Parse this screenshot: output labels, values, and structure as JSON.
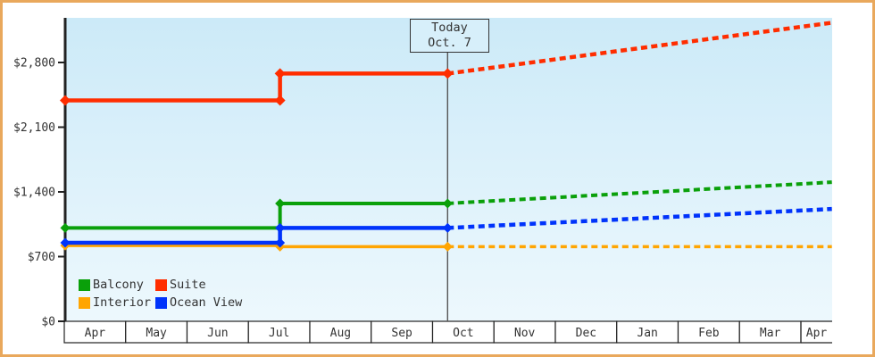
{
  "colors": {
    "frame_border": "#E9A85C",
    "plot_bg_top": "#CCEAF8",
    "plot_bg_bottom": "#EDF8FD",
    "axis": "#222222",
    "text": "#333333",
    "cell_bg": "#FFFFFF",
    "today_line": "#555555",
    "today_box_bg": "#D7EFFA",
    "today_box_border": "#333333"
  },
  "chart_data": {
    "type": "line",
    "x_axis": {
      "unit": "month",
      "categories": [
        "Apr",
        "May",
        "Jun",
        "Jul",
        "Aug",
        "Sep",
        "Oct",
        "Nov",
        "Dec",
        "Jan",
        "Feb",
        "Mar",
        "Apr"
      ]
    },
    "y_axis": {
      "ticks": [
        {
          "label": "$2,800",
          "value": 2800
        },
        {
          "label": "$2,100",
          "value": 2100
        },
        {
          "label": "$1,400",
          "value": 1400
        },
        {
          "label": "$700",
          "value": 700
        },
        {
          "label": "$0",
          "value": 0
        }
      ],
      "range": [
        0,
        3280
      ],
      "grid": false
    },
    "today": {
      "line1": "Today",
      "line2": "Oct. 7",
      "month_offset": 6.23
    },
    "series": [
      {
        "name": "Balcony",
        "color": "#0AA00A",
        "solid": [
          [
            0,
            1010
          ],
          [
            3.5,
            1010
          ],
          [
            3.5,
            1275
          ],
          [
            6.23,
            1275
          ]
        ],
        "dashed": [
          [
            6.23,
            1275
          ],
          [
            12.49,
            1505
          ]
        ],
        "markers": [
          [
            0,
            1010
          ],
          [
            3.5,
            1010
          ],
          [
            3.5,
            1275
          ],
          [
            6.23,
            1275
          ]
        ]
      },
      {
        "name": "Interior",
        "color": "#FFA502",
        "solid": [
          [
            0,
            820
          ],
          [
            3.5,
            820
          ],
          [
            3.5,
            808
          ],
          [
            6.23,
            808
          ]
        ],
        "dashed": [
          [
            6.23,
            808
          ],
          [
            12.49,
            808
          ]
        ],
        "markers": [
          [
            0,
            820
          ],
          [
            3.5,
            808
          ],
          [
            6.23,
            808
          ]
        ]
      },
      {
        "name": "Ocean View",
        "color": "#0033FB",
        "solid": [
          [
            0,
            850
          ],
          [
            3.5,
            850
          ],
          [
            3.5,
            1010
          ],
          [
            6.23,
            1010
          ]
        ],
        "dashed": [
          [
            6.23,
            1010
          ],
          [
            12.49,
            1215
          ]
        ],
        "markers": [
          [
            0,
            850
          ],
          [
            3.5,
            850
          ],
          [
            3.5,
            1010
          ],
          [
            6.23,
            1010
          ]
        ]
      },
      {
        "name": "Suite",
        "color": "#FF2D00",
        "solid": [
          [
            0,
            2390
          ],
          [
            3.5,
            2390
          ],
          [
            3.5,
            2680
          ],
          [
            6.23,
            2680
          ]
        ],
        "dashed": [
          [
            6.23,
            2680
          ],
          [
            12.49,
            3230
          ]
        ],
        "markers": [
          [
            0,
            2390
          ],
          [
            3.5,
            2390
          ],
          [
            3.5,
            2680
          ],
          [
            6.23,
            2680
          ]
        ]
      }
    ],
    "legend": {
      "position": "bottom-left",
      "items": [
        {
          "label": "Balcony",
          "color": "#0AA00A"
        },
        {
          "label": "Suite",
          "color": "#FF2D00"
        },
        {
          "label": "Interior",
          "color": "#FFA502"
        },
        {
          "label": "Ocean View",
          "color": "#0033FB"
        }
      ]
    }
  }
}
